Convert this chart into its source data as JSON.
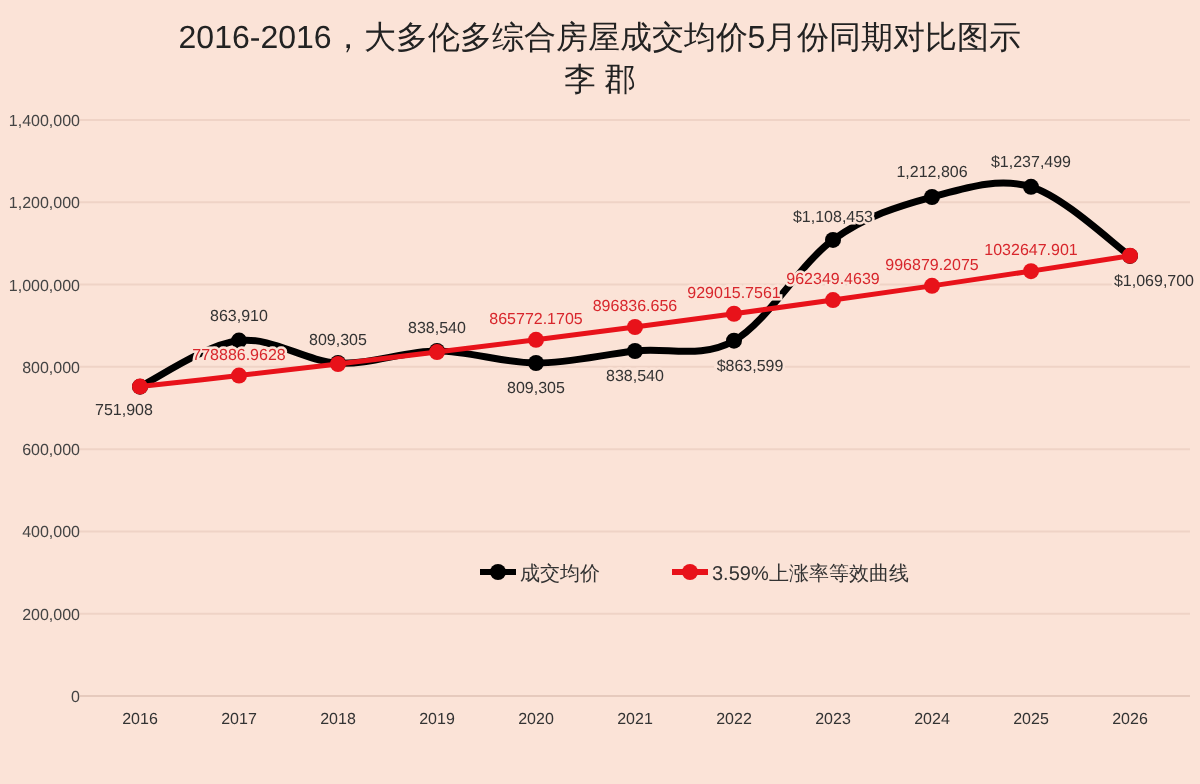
{
  "chart_data": {
    "type": "line",
    "title": "2016-2016，大多伦多综合房屋成交均价5月份同期对比图示",
    "subtitle": "李 郡",
    "categories": [
      "2016",
      "2017",
      "2018",
      "2019",
      "2020",
      "2021",
      "2022",
      "2023",
      "2024",
      "2025",
      "2026"
    ],
    "series": [
      {
        "name": "成交均价",
        "color": "#000000",
        "values": [
          751908,
          863910,
          809305,
          838540,
          809305,
          838540,
          863599,
          1108453,
          1212806,
          1237499,
          1069700
        ],
        "value_labels": [
          "751,908",
          "863,910",
          "809,305",
          "838,540",
          "809,305",
          "838,540",
          "$863,599",
          "$1,108,453",
          "1,212,806",
          "$1,237,499",
          "$1,069,700"
        ]
      },
      {
        "name": "3.59%上涨率等效曲线",
        "color": "#e8121a",
        "values": [
          752000,
          778886.9628,
          807000,
          836000,
          865772.1705,
          896836.656,
          929015.7561,
          962349.4639,
          996879.2075,
          1032647.901,
          1070000
        ],
        "value_labels": [
          null,
          "778886.9628",
          null,
          null,
          "865772.1705",
          "896836.656",
          "929015.7561",
          "962349.4639",
          "996879.2075",
          "1032647.901",
          null
        ]
      }
    ],
    "ylim": [
      0,
      1400000
    ],
    "yticks": [
      0,
      {
        "value": 200000,
        "label": "200,000"
      },
      {
        "value": 400000,
        "label": "400,000"
      },
      {
        "value": 600000,
        "label": "600,000"
      },
      {
        "value": 800000,
        "label": "800,000"
      },
      {
        "value": 1000000,
        "label": "1,000,000"
      },
      {
        "value": 1200000,
        "label": "1,200,000"
      },
      {
        "value": 1400000,
        "label": "1,400,000"
      }
    ],
    "grid": "y",
    "legend": "bottom",
    "marker": "circle",
    "line_style": "solid"
  }
}
